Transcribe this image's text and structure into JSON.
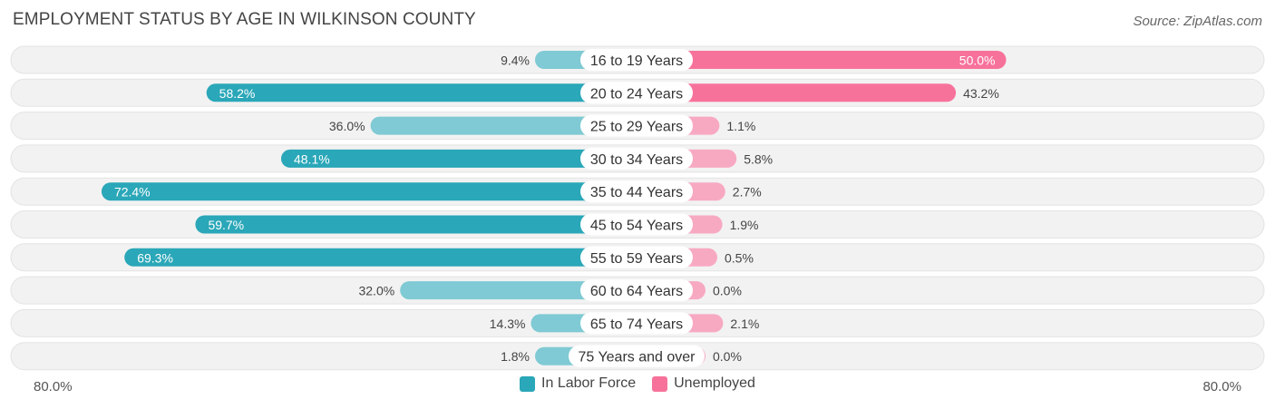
{
  "title": "EMPLOYMENT STATUS BY AGE IN WILKINSON COUNTY",
  "source": "Source: ZipAtlas.com",
  "colors": {
    "labor_dark": "#2aa7b8",
    "labor_light": "#7fcad4",
    "unemp_dark": "#f7729b",
    "unemp_light": "#f8a9c2",
    "row_bg": "#f2f2f2"
  },
  "chart_data": {
    "type": "bar",
    "orientation": "diverging-horizontal",
    "title": "EMPLOYMENT STATUS BY AGE IN WILKINSON COUNTY",
    "categories": [
      "16 to 19 Years",
      "20 to 24 Years",
      "25 to 29 Years",
      "30 to 34 Years",
      "35 to 44 Years",
      "45 to 54 Years",
      "55 to 59 Years",
      "60 to 64 Years",
      "65 to 74 Years",
      "75 Years and over"
    ],
    "series": [
      {
        "name": "In Labor Force",
        "side": "left",
        "values": [
          9.4,
          58.2,
          36.0,
          48.1,
          72.4,
          59.7,
          69.3,
          32.0,
          14.3,
          1.8
        ],
        "labels": [
          "9.4%",
          "58.2%",
          "36.0%",
          "48.1%",
          "72.4%",
          "59.7%",
          "69.3%",
          "32.0%",
          "14.3%",
          "1.8%"
        ]
      },
      {
        "name": "Unemployed",
        "side": "right",
        "values": [
          50.0,
          43.2,
          1.1,
          5.8,
          2.7,
          1.9,
          0.5,
          0.0,
          2.1,
          0.0
        ],
        "labels": [
          "50.0%",
          "43.2%",
          "1.1%",
          "5.8%",
          "2.7%",
          "1.9%",
          "0.5%",
          "0.0%",
          "2.1%",
          "0.0%"
        ]
      }
    ],
    "xlim": [
      0,
      80
    ],
    "axis_min_label": "80.0%",
    "axis_max_label": "80.0%",
    "legend_position": "bottom-center"
  },
  "legend": {
    "labor_label": "In Labor Force",
    "unemp_label": "Unemployed"
  }
}
